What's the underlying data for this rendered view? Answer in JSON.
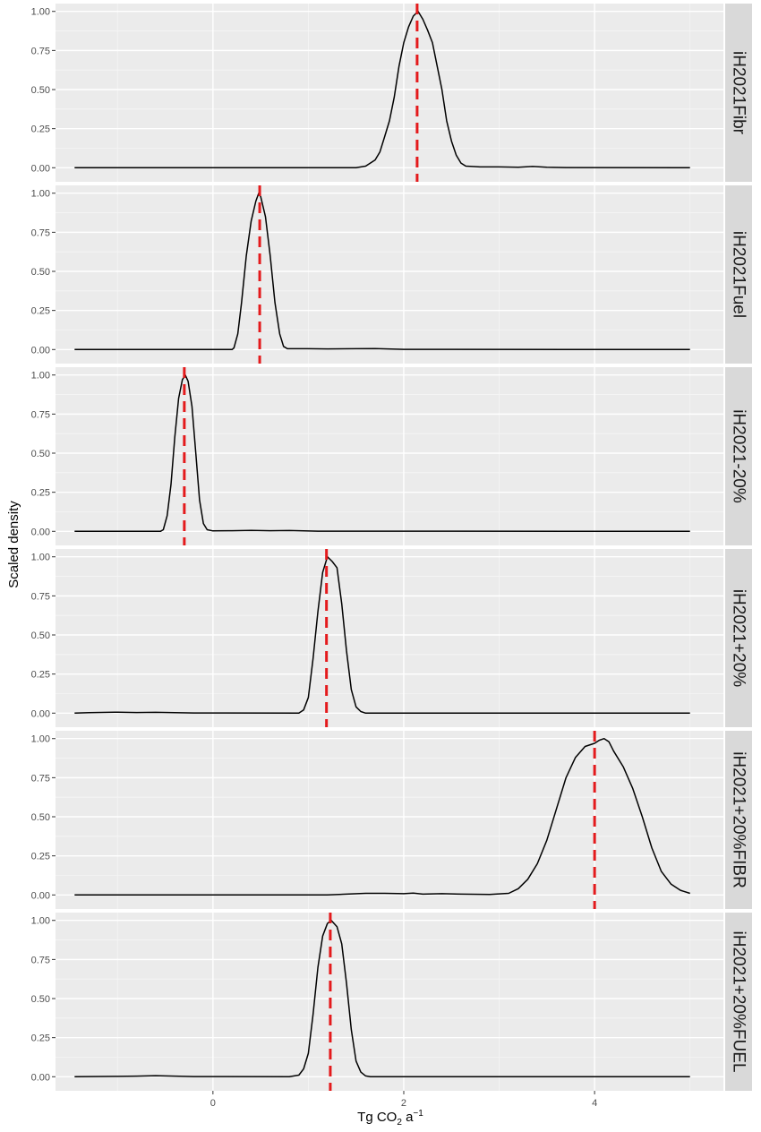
{
  "chart_data": {
    "type": "line",
    "ylabel": "Scaled density",
    "xlabel": {
      "prefix": "Tg CO",
      "sub": "2",
      "mid": " a",
      "sup": "−1"
    },
    "xlim": [
      -1.65,
      5.35
    ],
    "ylim": [
      -0.09,
      1.05
    ],
    "x_ticks": [
      0,
      2,
      4
    ],
    "x_minor_ticks": [
      -1,
      1,
      3,
      5
    ],
    "y_ticks": [
      0,
      0.25,
      0.5,
      0.75,
      1.0
    ],
    "y_tick_labels": [
      "0.00",
      "0.25",
      "0.50",
      "0.75",
      "1.00"
    ],
    "grid": true,
    "line_color": "#000000",
    "reference_line_color": "#e41a1c",
    "panels": [
      {
        "label": "iH2021Fibr",
        "ref_x": 2.14,
        "points": [
          [
            -1.45,
            0
          ],
          [
            1.5,
            0
          ],
          [
            1.6,
            0.01
          ],
          [
            1.7,
            0.05
          ],
          [
            1.75,
            0.1
          ],
          [
            1.8,
            0.2
          ],
          [
            1.85,
            0.3
          ],
          [
            1.9,
            0.45
          ],
          [
            1.95,
            0.65
          ],
          [
            2.0,
            0.8
          ],
          [
            2.05,
            0.9
          ],
          [
            2.1,
            0.97
          ],
          [
            2.15,
            1.0
          ],
          [
            2.2,
            0.95
          ],
          [
            2.25,
            0.88
          ],
          [
            2.3,
            0.8
          ],
          [
            2.35,
            0.65
          ],
          [
            2.4,
            0.5
          ],
          [
            2.45,
            0.3
          ],
          [
            2.5,
            0.17
          ],
          [
            2.55,
            0.08
          ],
          [
            2.6,
            0.03
          ],
          [
            2.65,
            0.01
          ],
          [
            2.8,
            0.005
          ],
          [
            3.0,
            0.005
          ],
          [
            3.2,
            0.003
          ],
          [
            3.35,
            0.008
          ],
          [
            3.5,
            0.003
          ],
          [
            3.7,
            0.001
          ],
          [
            5.0,
            0
          ]
        ]
      },
      {
        "label": "iH2021Fuel",
        "ref_x": 0.49,
        "points": [
          [
            -1.45,
            0
          ],
          [
            0.2,
            0
          ],
          [
            0.22,
            0.01
          ],
          [
            0.26,
            0.1
          ],
          [
            0.3,
            0.3
          ],
          [
            0.35,
            0.6
          ],
          [
            0.4,
            0.82
          ],
          [
            0.45,
            0.95
          ],
          [
            0.48,
            1.0
          ],
          [
            0.5,
            0.98
          ],
          [
            0.55,
            0.85
          ],
          [
            0.6,
            0.6
          ],
          [
            0.65,
            0.3
          ],
          [
            0.7,
            0.1
          ],
          [
            0.74,
            0.02
          ],
          [
            0.78,
            0.005
          ],
          [
            1.0,
            0.005
          ],
          [
            1.2,
            0.004
          ],
          [
            1.5,
            0.005
          ],
          [
            1.7,
            0.006
          ],
          [
            2.0,
            0.001
          ],
          [
            5.0,
            0
          ]
        ]
      },
      {
        "label": "iH2021-20%",
        "ref_x": -0.3,
        "points": [
          [
            -1.45,
            0
          ],
          [
            -0.55,
            0
          ],
          [
            -0.52,
            0.01
          ],
          [
            -0.48,
            0.1
          ],
          [
            -0.44,
            0.3
          ],
          [
            -0.4,
            0.6
          ],
          [
            -0.36,
            0.85
          ],
          [
            -0.32,
            0.97
          ],
          [
            -0.29,
            1.0
          ],
          [
            -0.26,
            0.96
          ],
          [
            -0.22,
            0.8
          ],
          [
            -0.18,
            0.5
          ],
          [
            -0.14,
            0.2
          ],
          [
            -0.1,
            0.05
          ],
          [
            -0.06,
            0.01
          ],
          [
            0.0,
            0.003
          ],
          [
            0.2,
            0.004
          ],
          [
            0.4,
            0.006
          ],
          [
            0.6,
            0.004
          ],
          [
            0.8,
            0.005
          ],
          [
            0.9,
            0.004
          ],
          [
            1.1,
            0.001
          ],
          [
            5.0,
            0
          ]
        ]
      },
      {
        "label": "iH2021+20%",
        "ref_x": 1.19,
        "points": [
          [
            -1.45,
            0
          ],
          [
            -1.3,
            0.003
          ],
          [
            -1.0,
            0.006
          ],
          [
            -0.8,
            0.004
          ],
          [
            -0.6,
            0.005
          ],
          [
            -0.4,
            0.003
          ],
          [
            -0.2,
            0.001
          ],
          [
            0.9,
            0
          ],
          [
            0.95,
            0.02
          ],
          [
            1.0,
            0.1
          ],
          [
            1.05,
            0.35
          ],
          [
            1.1,
            0.65
          ],
          [
            1.15,
            0.9
          ],
          [
            1.2,
            1.0
          ],
          [
            1.25,
            0.97
          ],
          [
            1.3,
            0.93
          ],
          [
            1.35,
            0.7
          ],
          [
            1.4,
            0.4
          ],
          [
            1.45,
            0.15
          ],
          [
            1.5,
            0.04
          ],
          [
            1.55,
            0.01
          ],
          [
            1.6,
            0
          ],
          [
            5.0,
            0
          ]
        ]
      },
      {
        "label": "iH2021+20%FIBR",
        "ref_x": 4.0,
        "points": [
          [
            -1.45,
            0
          ],
          [
            1.2,
            0
          ],
          [
            1.4,
            0.005
          ],
          [
            1.6,
            0.01
          ],
          [
            1.8,
            0.01
          ],
          [
            2.0,
            0.008
          ],
          [
            2.1,
            0.012
          ],
          [
            2.2,
            0.005
          ],
          [
            2.4,
            0.008
          ],
          [
            2.6,
            0.005
          ],
          [
            2.9,
            0.003
          ],
          [
            3.1,
            0.01
          ],
          [
            3.2,
            0.04
          ],
          [
            3.3,
            0.1
          ],
          [
            3.4,
            0.2
          ],
          [
            3.5,
            0.35
          ],
          [
            3.6,
            0.55
          ],
          [
            3.7,
            0.75
          ],
          [
            3.8,
            0.88
          ],
          [
            3.9,
            0.95
          ],
          [
            4.0,
            0.97
          ],
          [
            4.05,
            0.99
          ],
          [
            4.1,
            1.0
          ],
          [
            4.15,
            0.98
          ],
          [
            4.2,
            0.92
          ],
          [
            4.3,
            0.82
          ],
          [
            4.4,
            0.68
          ],
          [
            4.5,
            0.5
          ],
          [
            4.6,
            0.3
          ],
          [
            4.7,
            0.15
          ],
          [
            4.8,
            0.07
          ],
          [
            4.9,
            0.03
          ],
          [
            5.0,
            0.01
          ]
        ]
      },
      {
        "label": "iH2021+20%FUEL",
        "ref_x": 1.23,
        "points": [
          [
            -1.45,
            0
          ],
          [
            -1.0,
            0.002
          ],
          [
            -0.8,
            0.004
          ],
          [
            -0.6,
            0.007
          ],
          [
            -0.4,
            0.004
          ],
          [
            -0.2,
            0.001
          ],
          [
            0.8,
            0
          ],
          [
            0.9,
            0.01
          ],
          [
            0.95,
            0.05
          ],
          [
            1.0,
            0.15
          ],
          [
            1.05,
            0.4
          ],
          [
            1.1,
            0.7
          ],
          [
            1.15,
            0.9
          ],
          [
            1.2,
            0.98
          ],
          [
            1.24,
            1.0
          ],
          [
            1.3,
            0.96
          ],
          [
            1.35,
            0.85
          ],
          [
            1.4,
            0.6
          ],
          [
            1.45,
            0.3
          ],
          [
            1.5,
            0.1
          ],
          [
            1.55,
            0.03
          ],
          [
            1.6,
            0.005
          ],
          [
            1.65,
            0
          ],
          [
            5.0,
            0
          ]
        ]
      }
    ]
  }
}
